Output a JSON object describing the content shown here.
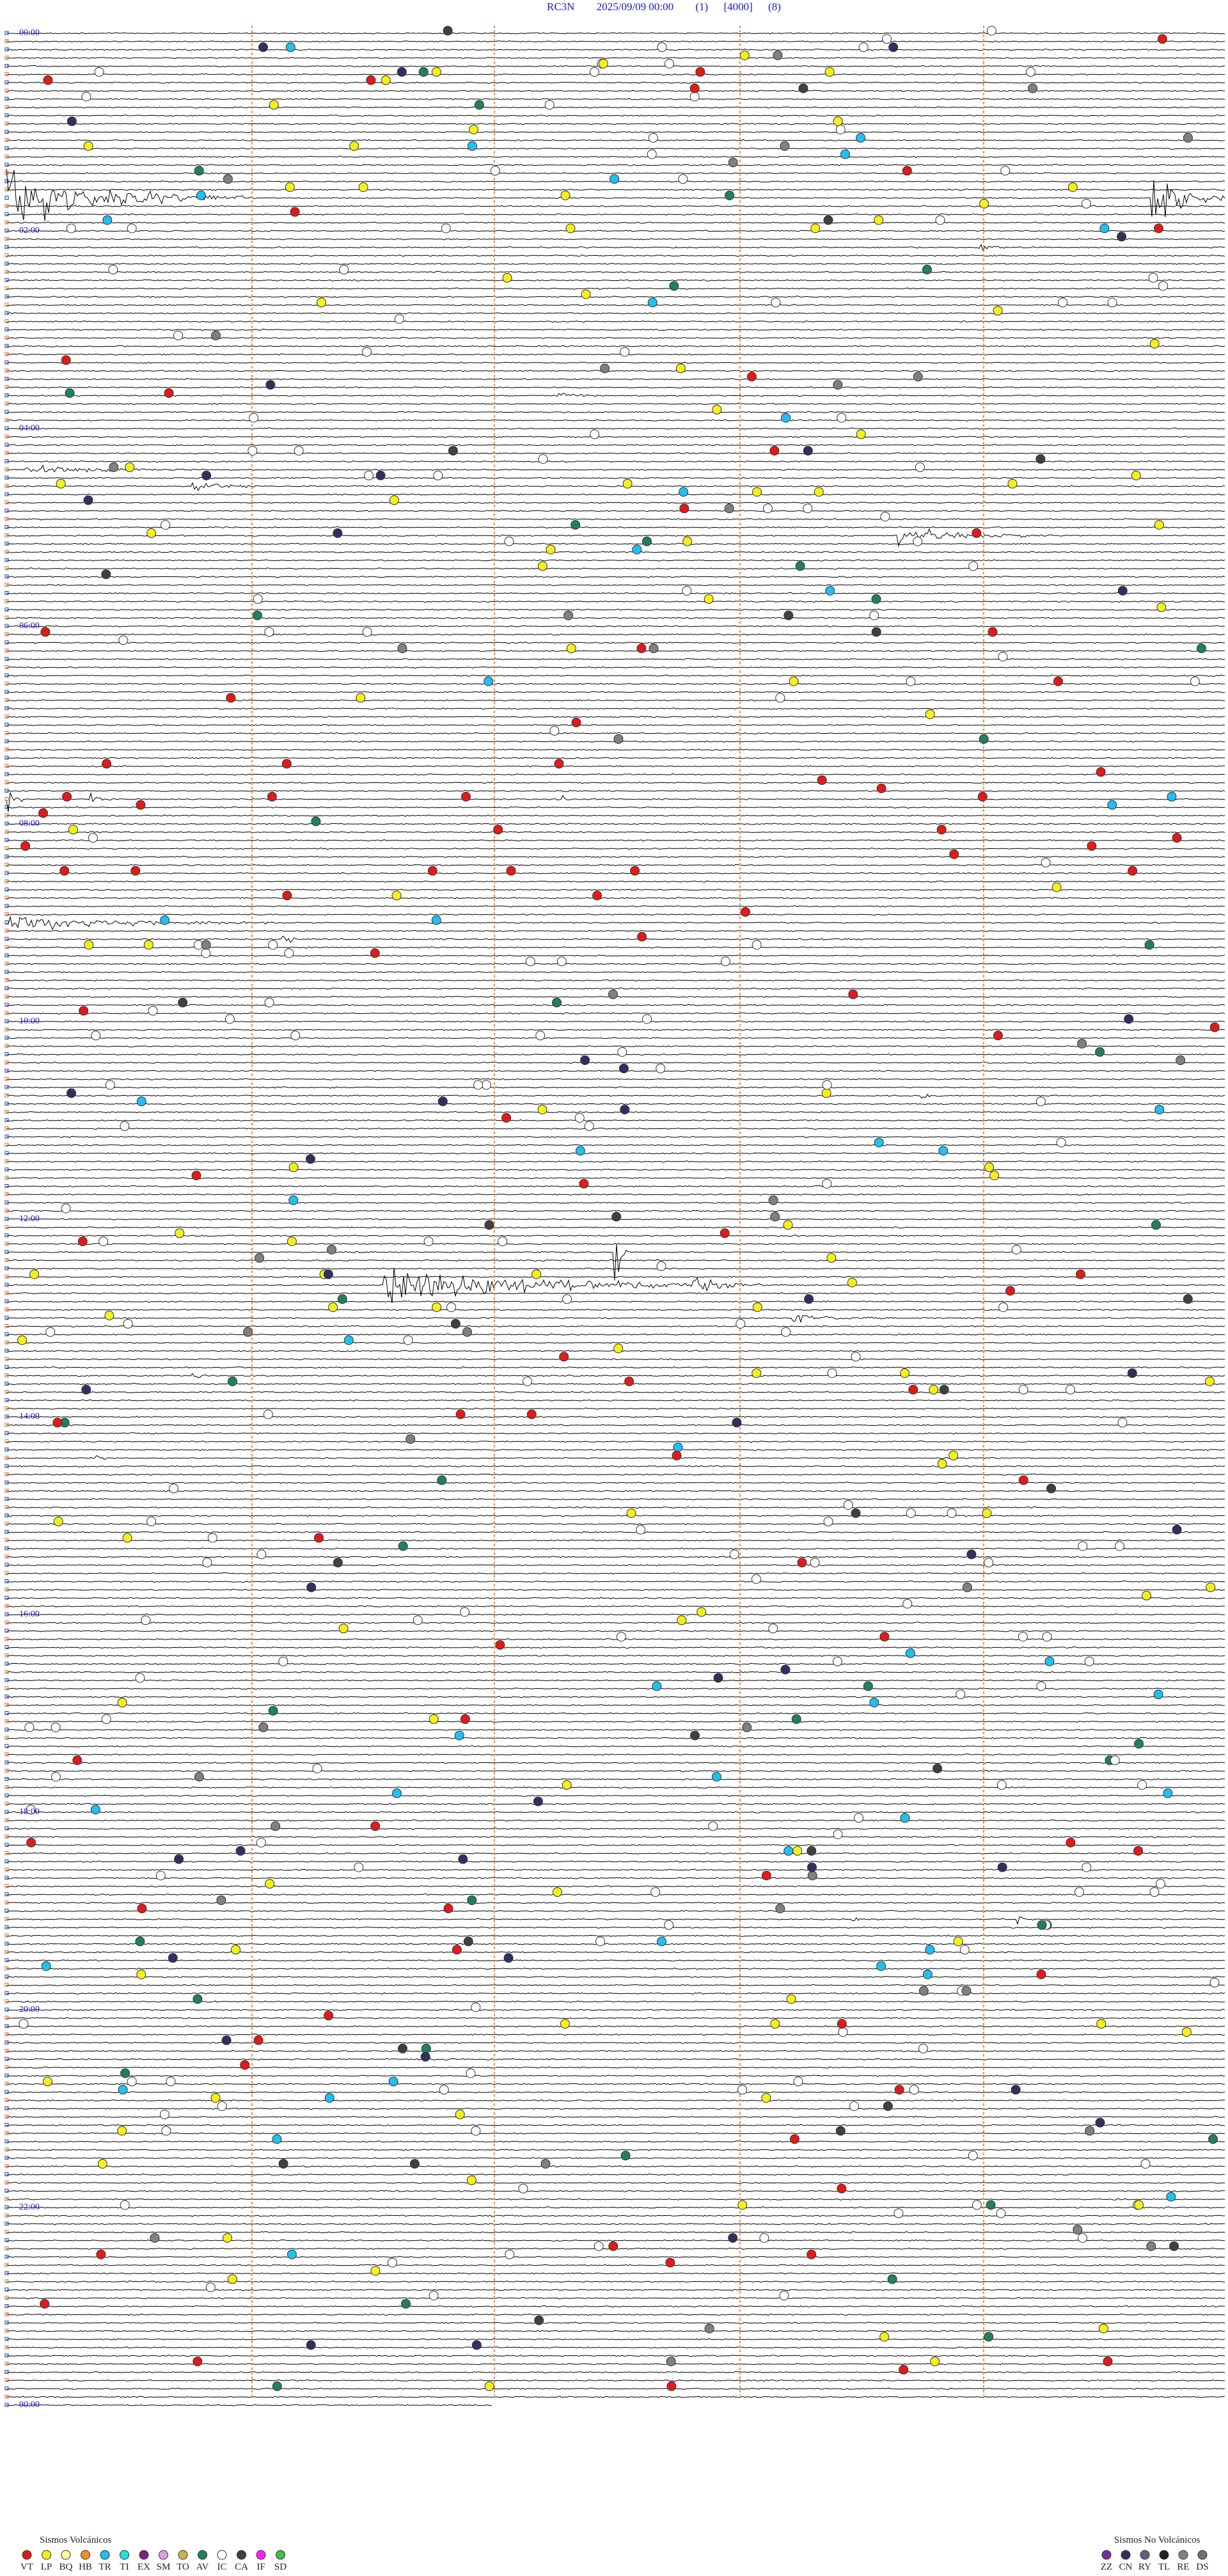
{
  "header": {
    "station": "RC3N",
    "datetime": "2025/09/09 00:00",
    "channel": "(1)",
    "gain": "[4000]",
    "scale": "(8)"
  },
  "hour_labels": [
    "00:00",
    "02:00",
    "04:00",
    "06:00",
    "08:00",
    "10:00",
    "12:00",
    "14:00",
    "16:00",
    "18:00",
    "20:00",
    "22:00",
    "00:00"
  ],
  "legend_volcanic": {
    "title": "Sismos Volcánicos",
    "codes": [
      "VT",
      "LP",
      "BQ",
      "HB",
      "TR",
      "TI",
      "EX",
      "SM",
      "TO",
      "AV",
      "IC",
      "CA",
      "IF",
      "SD"
    ]
  },
  "legend_non_volcanic": {
    "title": "Sismos No Volcánicos",
    "codes": [
      "ZZ",
      "CN",
      "RY",
      "TL",
      "RE",
      "DS"
    ]
  }
}
